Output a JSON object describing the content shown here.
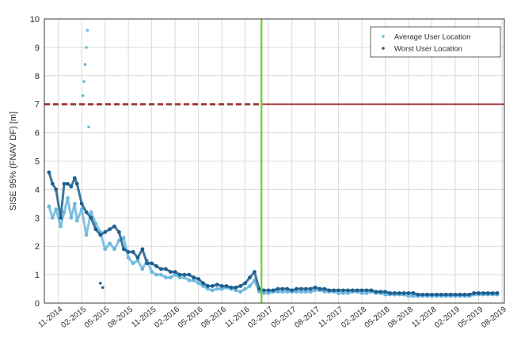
{
  "chart_data": {
    "type": "scatter",
    "ylabel": "SISE 95% (FNAV DF) [m]",
    "xlabel": "",
    "ylim": [
      0,
      10
    ],
    "yticks": [
      "0",
      "1",
      "2",
      "3",
      "4",
      "5",
      "6",
      "7",
      "8",
      "9",
      "10"
    ],
    "xticks": [
      "11-2014",
      "02-2015",
      "05-2015",
      "08-2015",
      "11-2015",
      "02-2016",
      "05-2016",
      "08-2016",
      "11-2016",
      "02-2017",
      "05-2017",
      "08-2017",
      "11-2017",
      "02-2018",
      "05-2018",
      "08-2018",
      "11-2018",
      "02-2019",
      "05-2019",
      "08-2019"
    ],
    "xlim": [
      -0.6,
      19.1
    ],
    "grid": true,
    "legend_position": "top-right",
    "colors": {
      "average": "#6cb9dd",
      "worst": "#1d5f8f",
      "threshold": "#a23a3a",
      "event": "#6fcf2b"
    },
    "series": [
      {
        "name": "Average User Location",
        "color": "#6cb9dd",
        "x": [
          -0.4,
          -0.25,
          -0.1,
          0.1,
          0.25,
          0.4,
          0.55,
          0.7,
          0.8,
          1.0,
          1.2,
          1.4,
          1.6,
          1.8,
          2.0,
          2.2,
          2.4,
          2.6,
          2.8,
          3.0,
          3.2,
          3.4,
          3.6,
          3.8,
          4.0,
          4.2,
          4.4,
          4.6,
          4.8,
          5.0,
          5.2,
          5.4,
          5.6,
          5.8,
          6.0,
          6.2,
          6.4,
          6.6,
          6.8,
          7.0,
          7.2,
          7.4,
          7.6,
          7.8,
          8.0,
          8.2,
          8.4,
          8.6,
          8.8,
          9.0,
          9.2,
          9.4,
          9.6,
          9.8,
          10.0,
          10.2,
          10.4,
          10.6,
          10.8,
          11.0,
          11.2,
          11.4,
          11.6,
          11.8,
          12.0,
          12.2,
          12.4,
          12.6,
          12.8,
          13.0,
          13.2,
          13.4,
          13.6,
          13.8,
          14.0,
          14.2,
          14.4,
          14.6,
          14.8,
          15.0,
          15.2,
          15.4,
          15.6,
          15.8,
          16.0,
          16.2,
          16.4,
          16.6,
          16.8,
          17.0,
          17.2,
          17.4,
          17.6,
          17.8,
          18.0,
          18.2,
          18.4,
          18.6,
          18.8
        ],
        "y": [
          3.4,
          3.0,
          3.3,
          2.7,
          3.2,
          3.7,
          3.0,
          3.5,
          2.9,
          3.3,
          2.4,
          3.2,
          2.8,
          2.5,
          1.9,
          2.1,
          1.9,
          2.2,
          2.3,
          1.6,
          1.4,
          1.5,
          1.2,
          1.5,
          1.1,
          1.0,
          1.0,
          0.9,
          0.9,
          1.0,
          0.9,
          0.9,
          0.8,
          0.8,
          0.7,
          0.6,
          0.5,
          0.45,
          0.5,
          0.5,
          0.55,
          0.5,
          0.45,
          0.4,
          0.5,
          0.6,
          0.8,
          0.4,
          0.35,
          0.35,
          0.4,
          0.4,
          0.4,
          0.4,
          0.4,
          0.4,
          0.4,
          0.4,
          0.4,
          0.45,
          0.45,
          0.4,
          0.4,
          0.4,
          0.35,
          0.35,
          0.35,
          0.4,
          0.4,
          0.35,
          0.35,
          0.4,
          0.35,
          0.35,
          0.3,
          0.3,
          0.3,
          0.3,
          0.3,
          0.25,
          0.25,
          0.25,
          0.25,
          0.25,
          0.25,
          0.25,
          0.25,
          0.25,
          0.25,
          0.25,
          0.25,
          0.25,
          0.25,
          0.3,
          0.3,
          0.3,
          0.3,
          0.3,
          0.3
        ]
      },
      {
        "name": "Worst User Location",
        "color": "#1d5f8f",
        "x": [
          -0.4,
          -0.25,
          -0.1,
          0.1,
          0.25,
          0.4,
          0.55,
          0.7,
          0.8,
          1.0,
          1.2,
          1.4,
          1.6,
          1.8,
          2.0,
          2.2,
          2.4,
          2.6,
          2.8,
          3.0,
          3.2,
          3.4,
          3.6,
          3.8,
          4.0,
          4.2,
          4.4,
          4.6,
          4.8,
          5.0,
          5.2,
          5.4,
          5.6,
          5.8,
          6.0,
          6.2,
          6.4,
          6.6,
          6.8,
          7.0,
          7.2,
          7.4,
          7.6,
          7.8,
          8.0,
          8.2,
          8.4,
          8.6,
          8.8,
          9.0,
          9.2,
          9.4,
          9.6,
          9.8,
          10.0,
          10.2,
          10.4,
          10.6,
          10.8,
          11.0,
          11.2,
          11.4,
          11.6,
          11.8,
          12.0,
          12.2,
          12.4,
          12.6,
          12.8,
          13.0,
          13.2,
          13.4,
          13.6,
          13.8,
          14.0,
          14.2,
          14.4,
          14.6,
          14.8,
          15.0,
          15.2,
          15.4,
          15.6,
          15.8,
          16.0,
          16.2,
          16.4,
          16.6,
          16.8,
          17.0,
          17.2,
          17.4,
          17.6,
          17.8,
          18.0,
          18.2,
          18.4,
          18.6,
          18.8
        ],
        "y": [
          4.6,
          4.2,
          4.0,
          3.0,
          4.2,
          4.2,
          4.1,
          4.4,
          4.2,
          3.5,
          3.2,
          3.0,
          2.6,
          2.4,
          2.5,
          2.6,
          2.7,
          2.5,
          1.9,
          1.8,
          1.8,
          1.6,
          1.9,
          1.4,
          1.4,
          1.3,
          1.2,
          1.2,
          1.1,
          1.1,
          1.0,
          1.0,
          1.0,
          0.9,
          0.85,
          0.7,
          0.6,
          0.6,
          0.65,
          0.6,
          0.6,
          0.55,
          0.55,
          0.6,
          0.7,
          0.9,
          1.1,
          0.5,
          0.45,
          0.45,
          0.45,
          0.5,
          0.5,
          0.5,
          0.45,
          0.5,
          0.5,
          0.5,
          0.5,
          0.55,
          0.5,
          0.5,
          0.45,
          0.45,
          0.45,
          0.45,
          0.45,
          0.45,
          0.45,
          0.45,
          0.45,
          0.45,
          0.4,
          0.4,
          0.4,
          0.35,
          0.35,
          0.35,
          0.35,
          0.35,
          0.35,
          0.3,
          0.3,
          0.3,
          0.3,
          0.3,
          0.3,
          0.3,
          0.3,
          0.3,
          0.3,
          0.3,
          0.3,
          0.35,
          0.35,
          0.35,
          0.35,
          0.35,
          0.35
        ]
      }
    ],
    "spikes_x": [
      1.05,
      1.1,
      1.15,
      1.2,
      1.25,
      1.3
    ],
    "spikes_y": [
      7.3,
      7.8,
      8.4,
      9.0,
      9.6,
      6.2
    ],
    "outliers_x": [
      1.8,
      1.9
    ],
    "outliers_y": [
      0.7,
      0.55
    ],
    "threshold_y": 7,
    "event_x": 8.7
  }
}
